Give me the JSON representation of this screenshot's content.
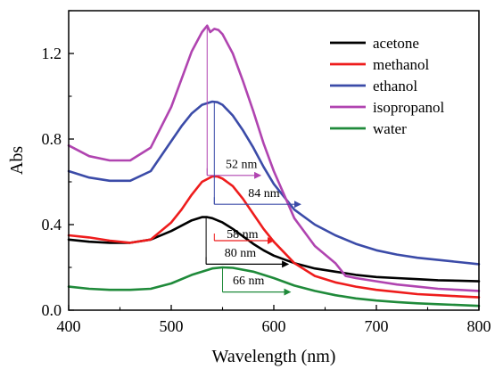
{
  "chart_data": {
    "type": "line",
    "xlabel": "Wavelength (nm)",
    "ylabel": "Abs",
    "xlim": [
      400,
      800
    ],
    "ylim": [
      0.0,
      1.4
    ],
    "xticks": [
      "400",
      "500",
      "600",
      "700",
      "800"
    ],
    "yticks": [
      "0.0",
      "0.4",
      "0.8",
      "1.2"
    ],
    "legend": "top-right",
    "grid": false,
    "series": [
      {
        "name": "acetone",
        "color": "#000000",
        "x": [
          400,
          420,
          440,
          460,
          480,
          500,
          510,
          520,
          530,
          535,
          540,
          550,
          560,
          570,
          580,
          590,
          600,
          620,
          640,
          660,
          680,
          700,
          720,
          740,
          760,
          780,
          800
        ],
        "y": [
          0.33,
          0.32,
          0.315,
          0.315,
          0.33,
          0.37,
          0.395,
          0.42,
          0.435,
          0.435,
          0.43,
          0.41,
          0.38,
          0.345,
          0.31,
          0.28,
          0.255,
          0.22,
          0.195,
          0.18,
          0.165,
          0.155,
          0.15,
          0.145,
          0.14,
          0.138,
          0.135
        ]
      },
      {
        "name": "methanol",
        "color": "#ee1c1c",
        "x": [
          400,
          420,
          440,
          460,
          480,
          500,
          510,
          520,
          530,
          540,
          545,
          550,
          560,
          570,
          580,
          590,
          600,
          620,
          640,
          660,
          680,
          700,
          720,
          740,
          760,
          780,
          800
        ],
        "y": [
          0.35,
          0.34,
          0.325,
          0.315,
          0.33,
          0.41,
          0.47,
          0.54,
          0.6,
          0.625,
          0.625,
          0.615,
          0.58,
          0.52,
          0.45,
          0.38,
          0.32,
          0.22,
          0.16,
          0.13,
          0.11,
          0.095,
          0.085,
          0.075,
          0.07,
          0.065,
          0.06
        ]
      },
      {
        "name": "ethanol",
        "color": "#3b4ba8",
        "x": [
          400,
          420,
          440,
          460,
          480,
          500,
          510,
          520,
          530,
          540,
          545,
          550,
          560,
          570,
          580,
          590,
          600,
          620,
          640,
          660,
          680,
          700,
          720,
          740,
          760,
          780,
          800
        ],
        "y": [
          0.65,
          0.62,
          0.605,
          0.605,
          0.65,
          0.79,
          0.86,
          0.92,
          0.96,
          0.975,
          0.972,
          0.96,
          0.91,
          0.84,
          0.76,
          0.67,
          0.59,
          0.47,
          0.4,
          0.35,
          0.31,
          0.28,
          0.26,
          0.245,
          0.235,
          0.225,
          0.215
        ]
      },
      {
        "name": "isopropanol",
        "color": "#b044b0",
        "x": [
          400,
          420,
          440,
          460,
          480,
          500,
          510,
          520,
          530,
          535,
          538,
          542,
          546,
          550,
          560,
          570,
          580,
          590,
          600,
          620,
          640,
          660,
          670,
          680,
          700,
          720,
          740,
          760,
          780,
          800
        ],
        "y": [
          0.77,
          0.72,
          0.7,
          0.7,
          0.76,
          0.95,
          1.08,
          1.21,
          1.3,
          1.33,
          1.3,
          1.315,
          1.31,
          1.29,
          1.2,
          1.07,
          0.93,
          0.78,
          0.65,
          0.43,
          0.3,
          0.22,
          0.16,
          0.15,
          0.135,
          0.12,
          0.11,
          0.1,
          0.095,
          0.09
        ]
      },
      {
        "name": "water",
        "color": "#1f8a3a",
        "x": [
          400,
          420,
          440,
          460,
          480,
          500,
          520,
          540,
          550,
          560,
          580,
          600,
          620,
          640,
          660,
          680,
          700,
          720,
          740,
          760,
          780,
          800
        ],
        "y": [
          0.11,
          0.1,
          0.095,
          0.095,
          0.1,
          0.125,
          0.165,
          0.195,
          0.2,
          0.198,
          0.18,
          0.15,
          0.115,
          0.09,
          0.07,
          0.055,
          0.045,
          0.038,
          0.032,
          0.028,
          0.024,
          0.02
        ]
      }
    ],
    "annotations": [
      {
        "label": "52 nm",
        "color": "#b044b0",
        "x_from": 535,
        "x_to": 587,
        "y": 0.63,
        "x_text": 553,
        "y_text": 0.665
      },
      {
        "label": "84 nm",
        "color": "#3b4ba8",
        "x_from": 542,
        "x_to": 626,
        "y": 0.495,
        "x_text": 575,
        "y_text": 0.53
      },
      {
        "label": "58 nm",
        "color": "#ee1c1c",
        "x_from": 542,
        "x_to": 600,
        "y": 0.325,
        "x_text": 554,
        "y_text": 0.337
      },
      {
        "label": "80 nm",
        "color": "#000000",
        "x_from": 534,
        "x_to": 614,
        "y": 0.215,
        "x_text": 552,
        "y_text": 0.25
      },
      {
        "label": "66 nm",
        "color": "#1f8a3a",
        "x_from": 550,
        "x_to": 616,
        "y": 0.085,
        "x_text": 560,
        "y_text": 0.12
      }
    ]
  }
}
